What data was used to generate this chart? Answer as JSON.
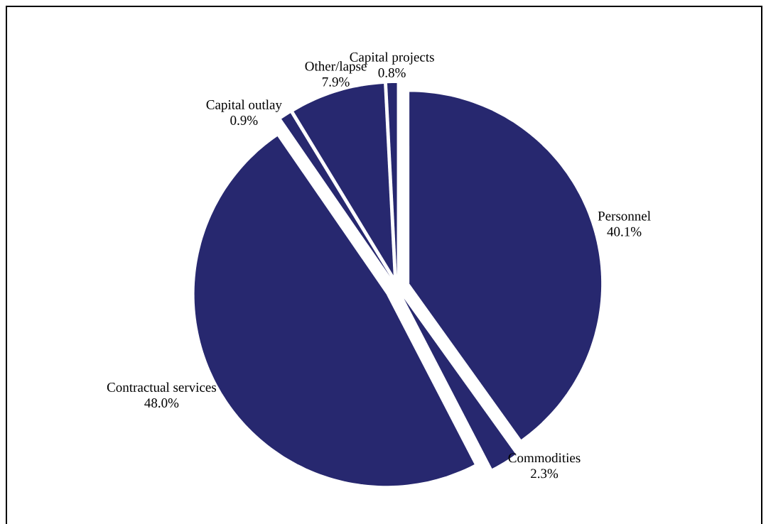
{
  "chart_data": {
    "type": "pie",
    "categories": [
      "Personnel",
      "Commodities",
      "Contractual services",
      "Capital outlay",
      "Other/lapse",
      "Capital projects"
    ],
    "values": [
      40.1,
      2.3,
      48.0,
      0.9,
      7.9,
      0.8
    ],
    "value_labels": [
      "40.1%",
      "2.3%",
      "48.0%",
      "0.9%",
      "7.9%",
      "0.8%"
    ],
    "colors": [
      "#27286f",
      "#27286f",
      "#27286f",
      "#27286f",
      "#27286f",
      "#27286f"
    ]
  }
}
